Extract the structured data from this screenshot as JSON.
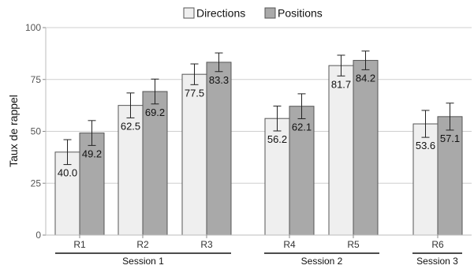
{
  "chart_data": {
    "type": "bar",
    "title": "",
    "xlabel": "",
    "ylabel": "Taux de rappel",
    "ylim": [
      0,
      100
    ],
    "yticks": [
      "0",
      "25",
      "50",
      "75",
      "100"
    ],
    "grid": true,
    "legend_position": "top",
    "categories": [
      "R1",
      "R2",
      "R3",
      "R4",
      "R5",
      "R6"
    ],
    "groups": [
      {
        "label": "Session 1",
        "categories": [
          "R1",
          "R2",
          "R3"
        ]
      },
      {
        "label": "Session 2",
        "categories": [
          "R4",
          "R5"
        ]
      },
      {
        "label": "Session 3",
        "categories": [
          "R6"
        ]
      }
    ],
    "series": [
      {
        "name": "Directions",
        "color": "#efefef",
        "values": [
          40.0,
          62.5,
          77.5,
          56.2,
          81.7,
          53.6
        ],
        "labels": [
          "40.0",
          "62.5",
          "77.5",
          "56.2",
          "81.7",
          "53.6"
        ],
        "error": [
          6.0,
          6.0,
          5.0,
          6.0,
          5.0,
          6.5
        ]
      },
      {
        "name": "Positions",
        "color": "#a9a9a9",
        "values": [
          49.2,
          69.2,
          83.3,
          62.1,
          84.2,
          57.1
        ],
        "labels": [
          "49.2",
          "69.2",
          "83.3",
          "62.1",
          "84.2",
          "57.1"
        ],
        "error": [
          6.0,
          6.0,
          4.5,
          6.0,
          4.5,
          6.5
        ]
      }
    ]
  }
}
